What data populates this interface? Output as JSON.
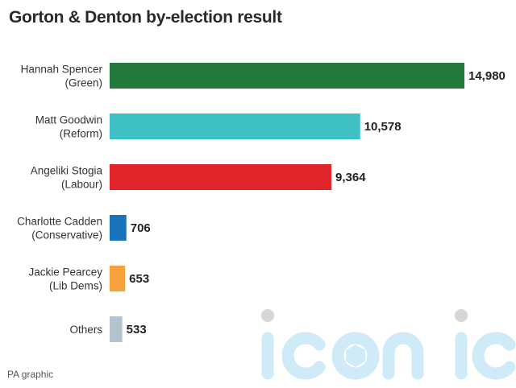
{
  "title": "Gorton & Denton by-election result",
  "source": "PA graphic",
  "watermark": "iconic",
  "chart_data": {
    "type": "bar",
    "orientation": "horizontal",
    "title": "Gorton & Denton by-election result",
    "xlabel": "",
    "ylabel": "",
    "grid": false,
    "legend": "none",
    "xlim": [
      0,
      14980
    ],
    "categories": [
      [
        "Hannah Spencer",
        "(Green)"
      ],
      [
        "Matt Goodwin",
        "(Reform)"
      ],
      [
        "Angeliki Stogia",
        "(Labour)"
      ],
      [
        "Charlotte Cadden",
        "(Conservative)"
      ],
      [
        "Jackie Pearcey",
        "(Lib Dems)"
      ],
      [
        "Others"
      ]
    ],
    "values": [
      14980,
      10578,
      9364,
      706,
      653,
      533
    ],
    "value_labels": [
      "14,980",
      "10,578",
      "9,364",
      "706",
      "653",
      "533"
    ],
    "colors": [
      "#237a3d",
      "#3dbfc4",
      "#e1252b",
      "#1a72b8",
      "#f7a13c",
      "#b4c4cd"
    ]
  }
}
